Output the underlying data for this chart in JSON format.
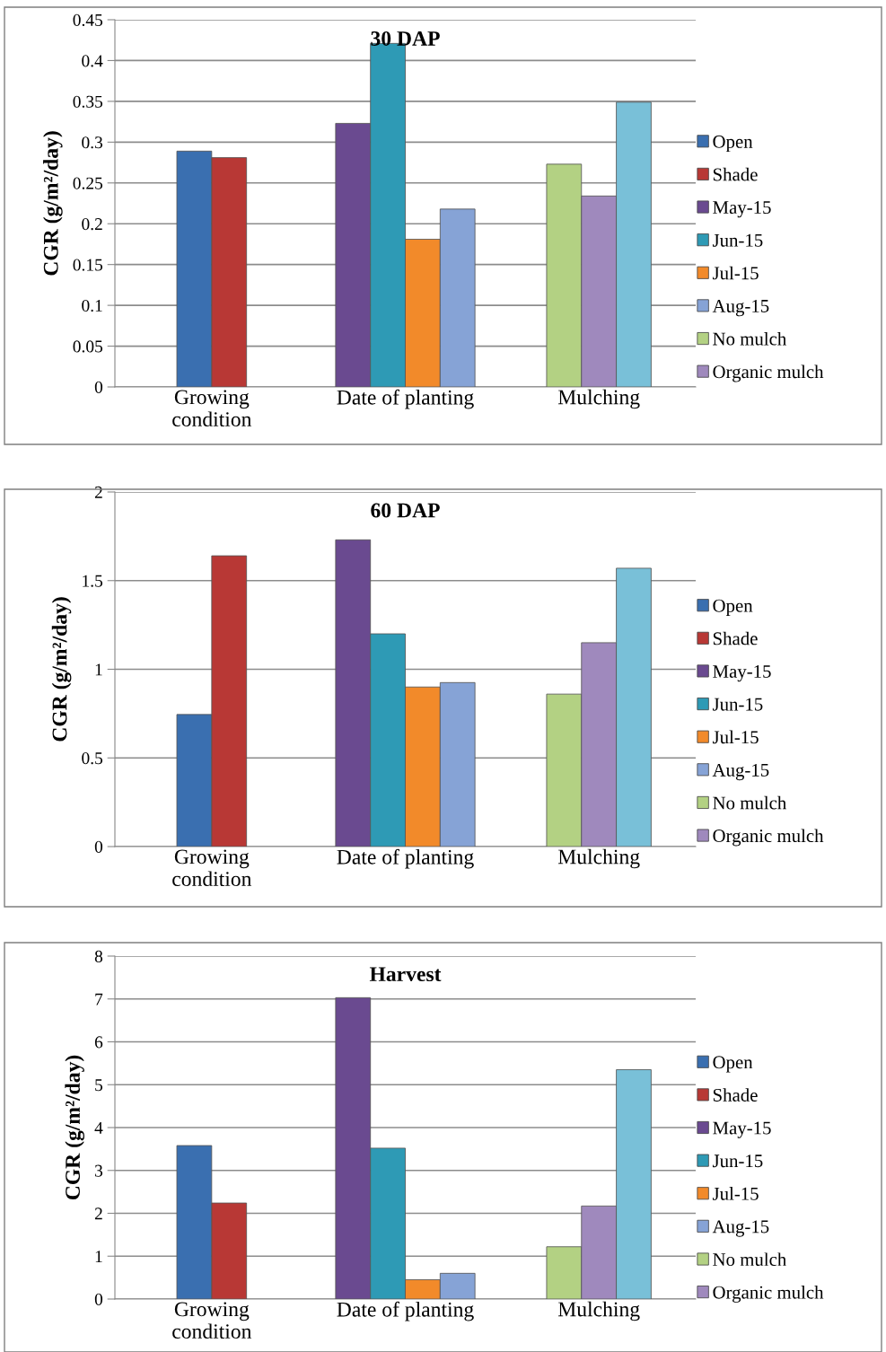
{
  "chart_data": [
    {
      "type": "bar",
      "title": "30 DAP",
      "ylabel": "CGR (g/m²/day)",
      "categories": [
        "Growing\ncondition",
        "Date of planting",
        "Mulching"
      ],
      "ylim": [
        0,
        0.45
      ],
      "yticks": [
        0,
        0.05,
        0.1,
        0.15,
        0.2,
        0.25,
        0.3,
        0.35,
        0.4,
        0.45
      ],
      "grid": "y",
      "legend": "right",
      "series": [
        {
          "name": "Open",
          "color": "#3a6fb0",
          "values": [
            0.289,
            null,
            null
          ]
        },
        {
          "name": "Shade",
          "color": "#b83835",
          "values": [
            0.281,
            null,
            null
          ]
        },
        {
          "name": "May-15",
          "color": "#6a4a90",
          "values": [
            null,
            0.323,
            null
          ]
        },
        {
          "name": "Jun-15",
          "color": "#2e9ab5",
          "values": [
            null,
            0.421,
            null
          ]
        },
        {
          "name": "Jul-15",
          "color": "#f28a2a",
          "values": [
            null,
            0.181,
            null
          ]
        },
        {
          "name": "Aug-15",
          "color": "#86a3d6",
          "values": [
            null,
            0.218,
            null
          ]
        },
        {
          "name": "No mulch",
          "color": "#b3d183",
          "values": [
            null,
            null,
            0.273
          ]
        },
        {
          "name": "Organic mulch",
          "color": "#9f89bd",
          "values": [
            null,
            null,
            0.234
          ]
        },
        {
          "color": "#79c0d8",
          "values": [
            null,
            null,
            0.349
          ]
        }
      ]
    },
    {
      "type": "bar",
      "title": "60 DAP",
      "ylabel": "CGR (g/m²/day)",
      "categories": [
        "Growing\ncondition",
        "Date of planting",
        "Mulching"
      ],
      "ylim": [
        0,
        2
      ],
      "yticks": [
        0,
        0.5,
        1,
        1.5,
        2
      ],
      "grid": "y",
      "legend": "right",
      "series": [
        {
          "name": "Open",
          "color": "#3a6fb0",
          "values": [
            0.745,
            null,
            null
          ]
        },
        {
          "name": "Shade",
          "color": "#b83835",
          "values": [
            1.64,
            null,
            null
          ]
        },
        {
          "name": "May-15",
          "color": "#6a4a90",
          "values": [
            null,
            1.73,
            null
          ]
        },
        {
          "name": "Jun-15",
          "color": "#2e9ab5",
          "values": [
            null,
            1.2,
            null
          ]
        },
        {
          "name": "Jul-15",
          "color": "#f28a2a",
          "values": [
            null,
            0.9,
            null
          ]
        },
        {
          "name": "Aug-15",
          "color": "#86a3d6",
          "values": [
            null,
            0.925,
            null
          ]
        },
        {
          "name": "No mulch",
          "color": "#b3d183",
          "values": [
            null,
            null,
            0.86
          ]
        },
        {
          "name": "Organic mulch",
          "color": "#9f89bd",
          "values": [
            null,
            null,
            1.15
          ]
        },
        {
          "color": "#79c0d8",
          "values": [
            null,
            null,
            1.57
          ]
        }
      ]
    },
    {
      "type": "bar",
      "title": "Harvest",
      "ylabel": "CGR (g/m²/day)",
      "categories": [
        "Growing\ncondition",
        "Date of planting",
        "Mulching"
      ],
      "ylim": [
        0,
        8
      ],
      "yticks": [
        0,
        1,
        2,
        3,
        4,
        5,
        6,
        7,
        8
      ],
      "grid": "y",
      "legend": "right",
      "series": [
        {
          "name": "Open",
          "color": "#3a6fb0",
          "values": [
            3.58,
            null,
            null
          ]
        },
        {
          "name": "Shade",
          "color": "#b83835",
          "values": [
            2.24,
            null,
            null
          ]
        },
        {
          "name": "May-15",
          "color": "#6a4a90",
          "values": [
            null,
            7.03,
            null
          ]
        },
        {
          "name": "Jun-15",
          "color": "#2e9ab5",
          "values": [
            null,
            3.52,
            null
          ]
        },
        {
          "name": "Jul-15",
          "color": "#f28a2a",
          "values": [
            null,
            0.45,
            null
          ]
        },
        {
          "name": "Aug-15",
          "color": "#86a3d6",
          "values": [
            null,
            0.6,
            null
          ]
        },
        {
          "name": "No mulch",
          "color": "#b3d183",
          "values": [
            null,
            null,
            1.22
          ]
        },
        {
          "name": "Organic mulch",
          "color": "#9f89bd",
          "values": [
            null,
            null,
            2.17
          ]
        },
        {
          "color": "#79c0d8",
          "values": [
            null,
            null,
            5.35
          ]
        }
      ]
    }
  ]
}
